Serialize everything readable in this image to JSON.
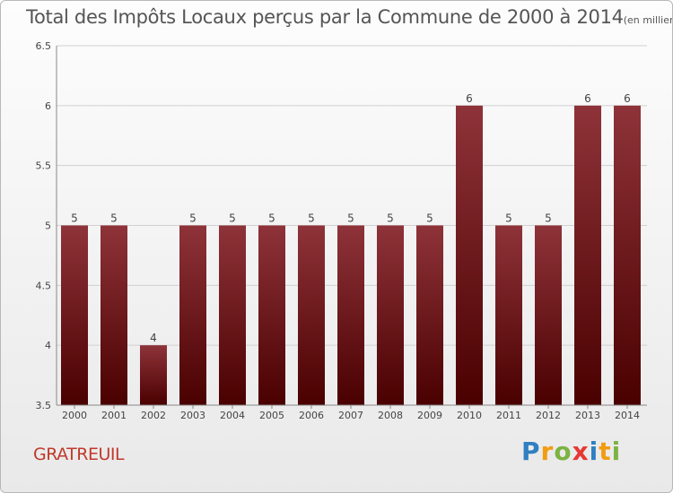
{
  "title": "Total des Impôts Locaux perçus par la Commune de 2000 à 2014",
  "unit": "(en milliers d'€)",
  "commune": "GRATREUIL",
  "brand": {
    "text": "Proxiti",
    "letters": [
      {
        "ch": "P",
        "color": "#2f7fc1"
      },
      {
        "ch": "r",
        "color": "#f39c12"
      },
      {
        "ch": "o",
        "color": "#7cb342"
      },
      {
        "ch": "x",
        "color": "#e53935"
      },
      {
        "ch": "i",
        "color": "#2f7fc1"
      },
      {
        "ch": "t",
        "color": "#f39c12"
      },
      {
        "ch": "i",
        "color": "#7cb342"
      }
    ]
  },
  "colors": {
    "bar_top": "#8e3339",
    "bar_bottom": "#4a0000",
    "grid": "#d0d0d0",
    "axis_text": "#444444",
    "commune": "#c0392b"
  },
  "chart_data": {
    "type": "bar",
    "title": "Total des Impôts Locaux perçus par la Commune de 2000 à 2014",
    "xlabel": "",
    "ylabel": "",
    "ylim": [
      3.5,
      6.5
    ],
    "yticks": [
      3.5,
      4,
      4.5,
      5,
      5.5,
      6,
      6.5
    ],
    "ytick_labels": [
      "3.5",
      "4",
      "4.5",
      "5",
      "5.5",
      "6",
      "6.5"
    ],
    "grid": true,
    "categories": [
      "2000",
      "2001",
      "2002",
      "2003",
      "2004",
      "2005",
      "2006",
      "2007",
      "2008",
      "2009",
      "2010",
      "2011",
      "2012",
      "2013",
      "2014"
    ],
    "values": [
      5,
      5,
      4,
      5,
      5,
      5,
      5,
      5,
      5,
      5,
      6,
      5,
      5,
      6,
      6
    ],
    "data_labels": [
      "5",
      "5",
      "4",
      "5",
      "5",
      "5",
      "5",
      "5",
      "5",
      "5",
      "6",
      "5",
      "5",
      "6",
      "6"
    ]
  }
}
